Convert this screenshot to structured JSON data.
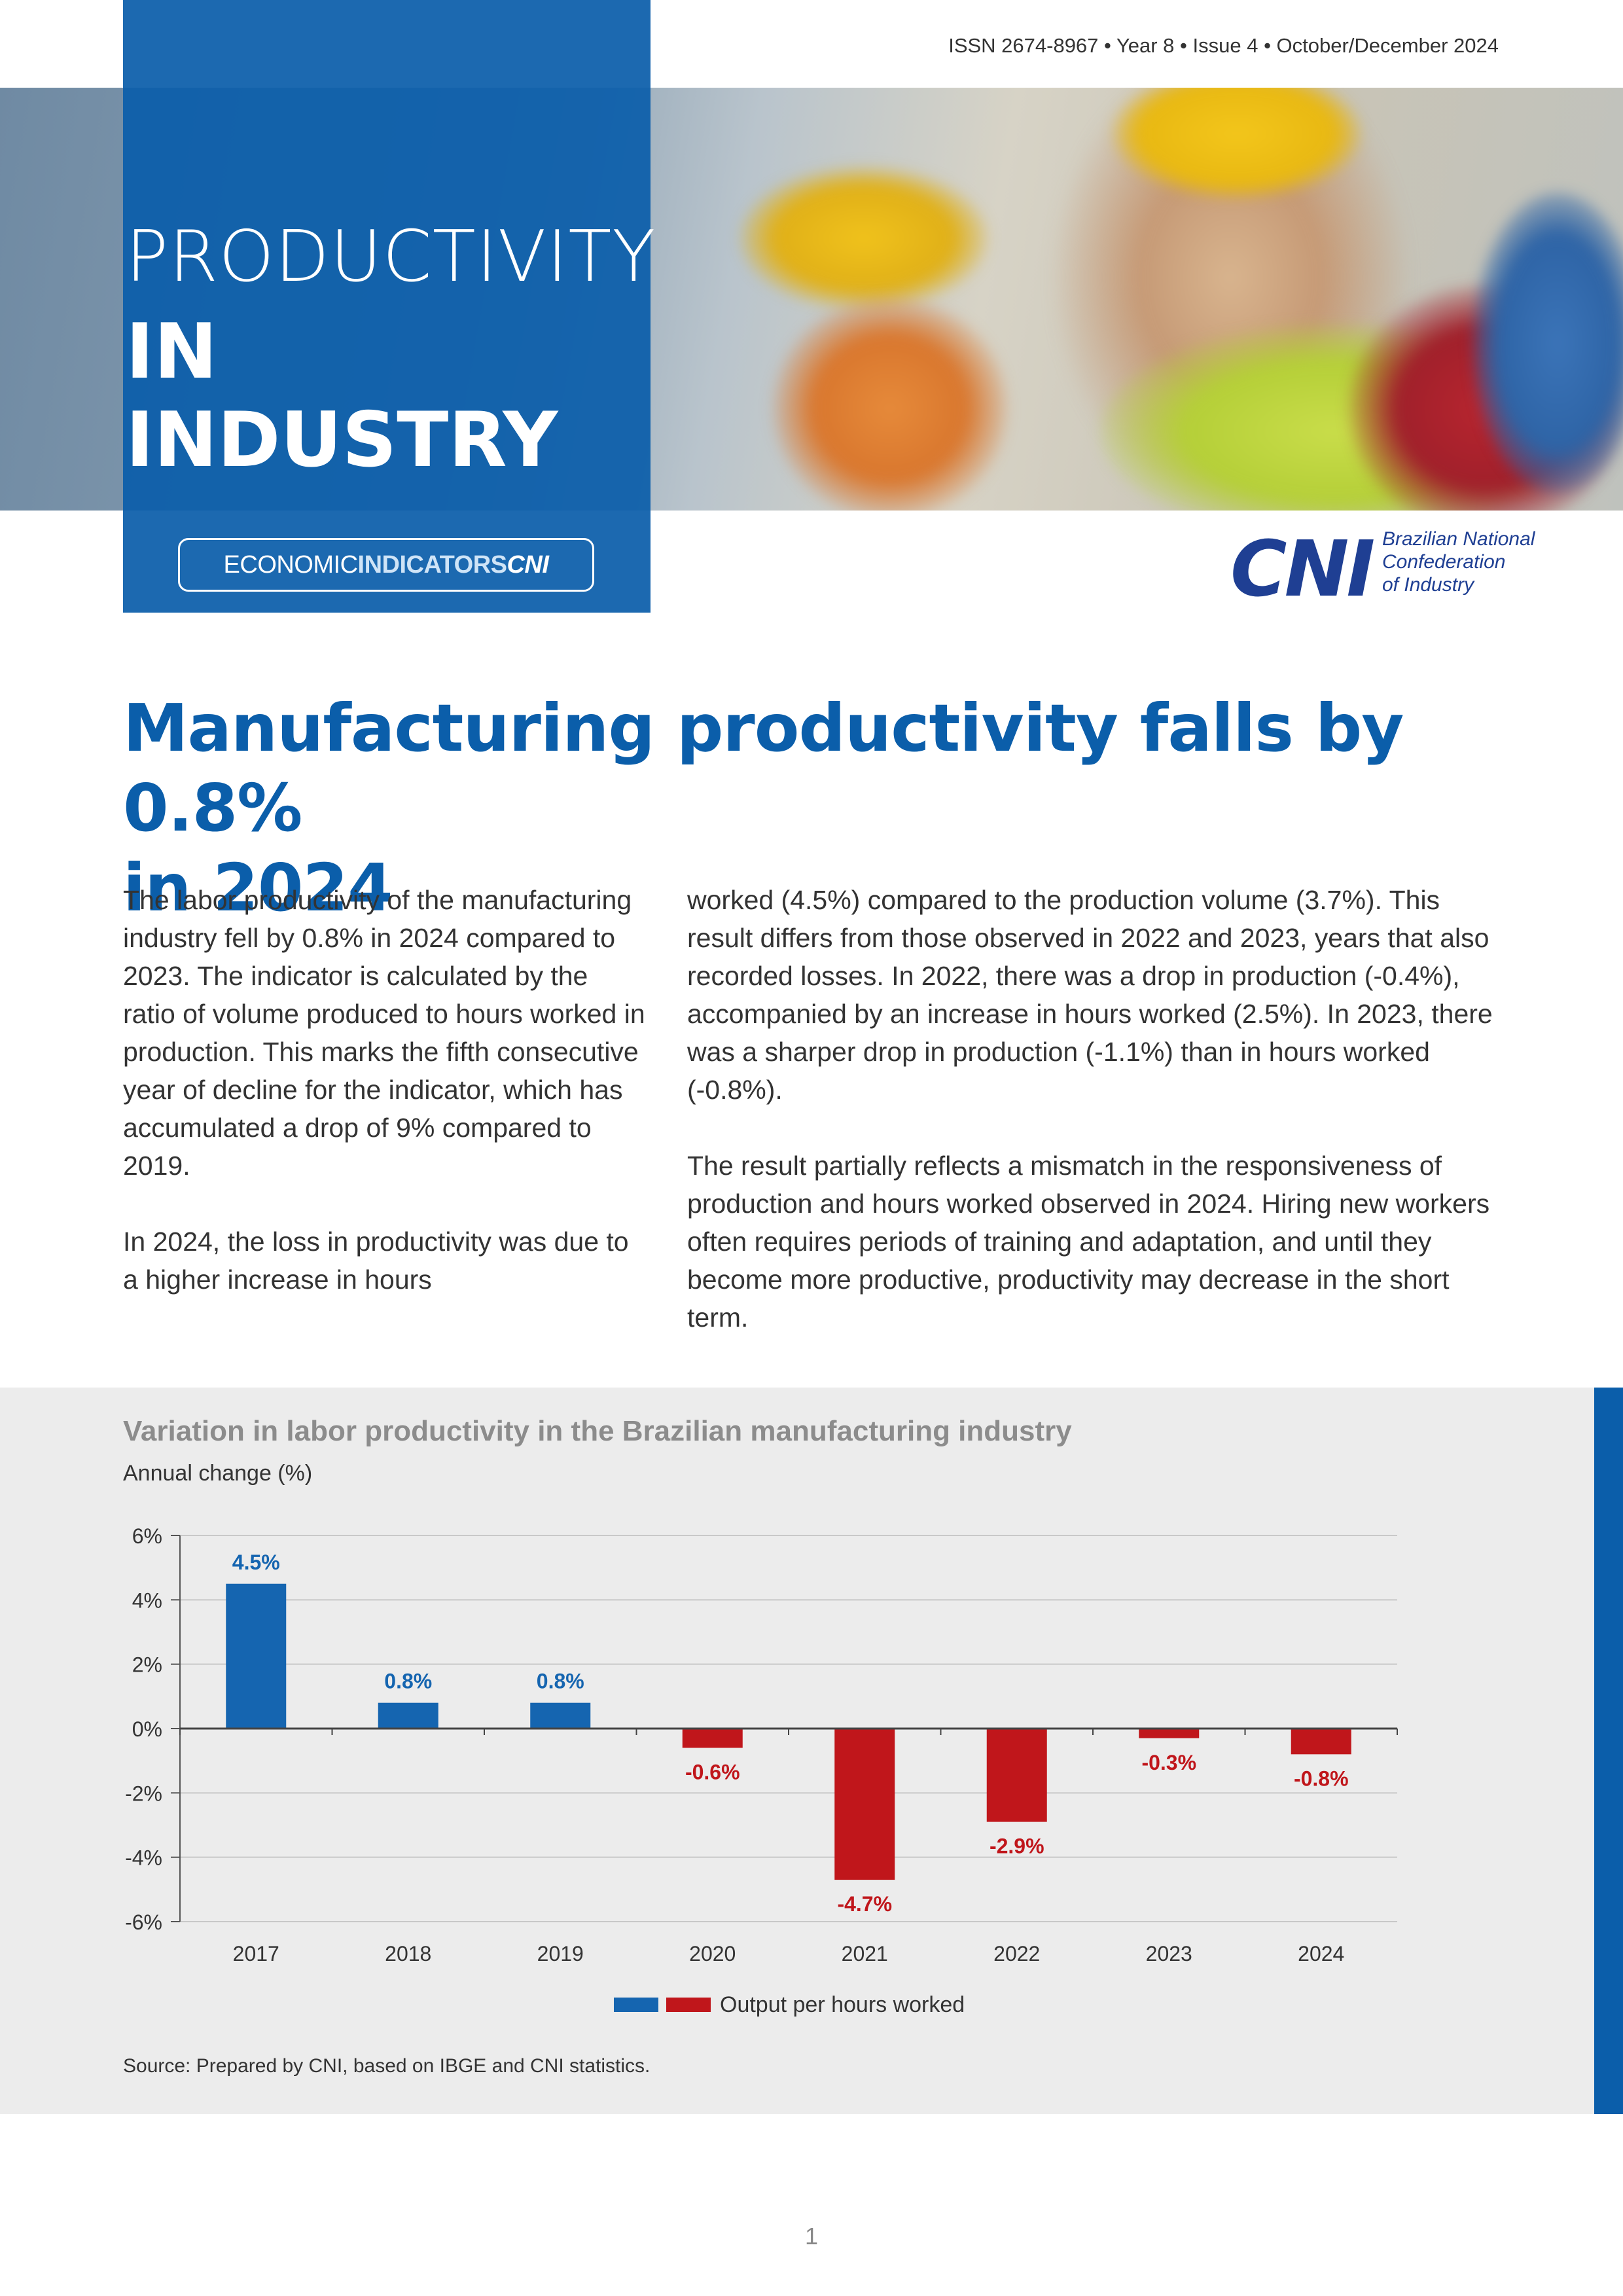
{
  "header": {
    "issn": "ISSN 2674-8967  • Year 8 • Issue 4 • October/December 2024"
  },
  "cover": {
    "title_line1": "PRODUCTIVITY",
    "title_line2": "IN INDUSTRY",
    "badge_part1": "ECONOMIC",
    "badge_part2": "INDICATORS",
    "badge_part3": "CNI",
    "image_description_icon": "workers-photo"
  },
  "brand": {
    "logo_text": "CNI",
    "org_line1": "Brazilian National",
    "org_line2": "Confederation",
    "org_line3": "of Industry"
  },
  "article": {
    "headline_line1": "Manufacturing productivity falls by 0.8%",
    "headline_line2": "in 2024",
    "left_p1": "The labor productivity of the manufacturing industry fell by 0.8% in 2024 compared to 2023. The indicator is calculated by the ratio of volume produced to hours worked in production. This marks the fifth consecutive year of decline for the indicator, which has accumulated a drop of 9% compared to 2019.",
    "left_p2": "In 2024, the loss in productivity was due to a higher increase in hours",
    "right_p1": "worked (4.5%) compared to the production volume (3.7%). This result differs from those observed in 2022 and 2023, years that also recorded losses. In 2022, there was a drop in production (-0.4%), accompanied by an increase in hours worked (2.5%). In 2023, there was a sharper drop in production (-1.1%) than in hours worked (-0.8%).",
    "right_p2": "The result partially reflects a mismatch in the responsiveness of production and hours worked observed in 2024. Hiring new workers often requires periods of training and adaptation, and until they become more productive, productivity may decrease in the short term."
  },
  "chart_data": {
    "type": "bar",
    "title": "Variation in labor productivity in the Brazilian manufacturing industry",
    "subtitle": "Annual change (%)",
    "categories": [
      "2017",
      "2018",
      "2019",
      "2020",
      "2021",
      "2022",
      "2023",
      "2024"
    ],
    "series": [
      {
        "name": "Output per hours worked",
        "values": [
          4.5,
          0.8,
          0.8,
          -0.6,
          -4.7,
          -2.9,
          -0.3,
          -0.8
        ]
      }
    ],
    "data_labels": [
      "4.5%",
      "0.8%",
      "0.8%",
      "-0.6%",
      "-4.7%",
      "-2.9%",
      "-0.3%",
      "-0.8%"
    ],
    "ylim": [
      -6,
      6
    ],
    "yticks": [
      6,
      4,
      2,
      0,
      -2,
      -4,
      -6
    ],
    "ytick_labels": [
      "6%",
      "4%",
      "2%",
      "0%",
      "-2%",
      "-4%",
      "-6%"
    ],
    "grid": true,
    "legend": "bottom-center",
    "positive_color": "#1565b0",
    "negative_color": "#c0161b",
    "source": "Source: Prepared by CNI, based on IBGE and CNI statistics."
  },
  "footer": {
    "page_number": "1"
  },
  "colors": {
    "brand_blue": "#0b5eaa",
    "cni_navy": "#1f3f93",
    "chart_background": "#ececec"
  }
}
